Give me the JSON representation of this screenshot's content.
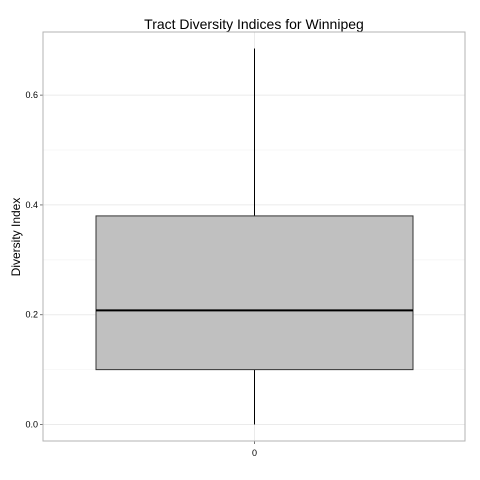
{
  "chart_data": {
    "type": "boxplot",
    "title": "Tract Diversity Indices for Winnipeg",
    "xlabel": "",
    "ylabel": "Diversity Index",
    "categories": [
      "0"
    ],
    "boxes": [
      {
        "category": "0",
        "min": 0.0,
        "q1": 0.1,
        "median": 0.208,
        "q3": 0.38,
        "max": 0.685
      }
    ],
    "ylim": [
      -0.03,
      0.715
    ],
    "yticks": [
      0.0,
      0.2,
      0.4,
      0.6
    ],
    "ytick_labels": [
      "0.0",
      "0.2",
      "0.4",
      "0.6"
    ],
    "grid": true,
    "box_fill": "#c0c0c0",
    "box_stroke": "#333333",
    "median_color": "#000000",
    "grid_major_color": "#ebebeb",
    "grid_minor_color": "#f5f5f5",
    "panel_border_color": "#b3b3b3"
  }
}
